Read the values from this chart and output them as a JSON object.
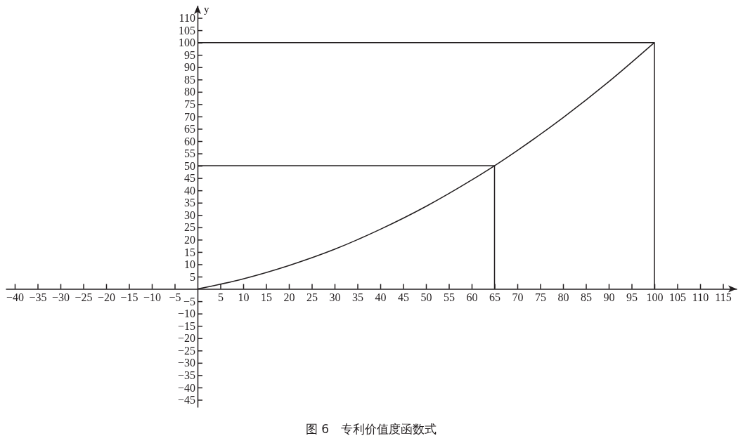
{
  "chart_data": {
    "type": "line",
    "title": "图 6　专利价值度函数式",
    "ylabel": "y",
    "xlim": [
      -42,
      118
    ],
    "ylim": [
      -48,
      115
    ],
    "xticks": [
      -40,
      -35,
      -30,
      -25,
      -20,
      -15,
      -10,
      -5,
      5,
      10,
      15,
      20,
      25,
      30,
      35,
      40,
      45,
      50,
      55,
      60,
      65,
      70,
      75,
      80,
      85,
      90,
      95,
      100,
      105,
      110,
      115
    ],
    "yticks": [
      -45,
      -40,
      -35,
      -30,
      -25,
      -20,
      -15,
      -10,
      -5,
      5,
      10,
      15,
      20,
      25,
      30,
      35,
      40,
      45,
      50,
      55,
      60,
      65,
      70,
      75,
      80,
      85,
      90,
      95,
      100,
      105,
      110
    ],
    "marker": "none",
    "line_style": "solid",
    "series": [
      {
        "color": "#231f20",
        "x": [
          0,
          10,
          20,
          30,
          40,
          50,
          60,
          65,
          70,
          80,
          90,
          100
        ],
        "values": [
          0,
          4.1,
          9.5,
          16.1,
          24.2,
          33.5,
          44.2,
          50,
          56.2,
          69.5,
          84.1,
          100
        ]
      },
      {
        "color": "#231f20",
        "x": [
          0,
          100,
          100
        ],
        "values": [
          100,
          100,
          0
        ]
      },
      {
        "color": "#231f20",
        "x": [
          0,
          65,
          65
        ],
        "values": [
          50,
          50,
          0
        ]
      }
    ]
  }
}
